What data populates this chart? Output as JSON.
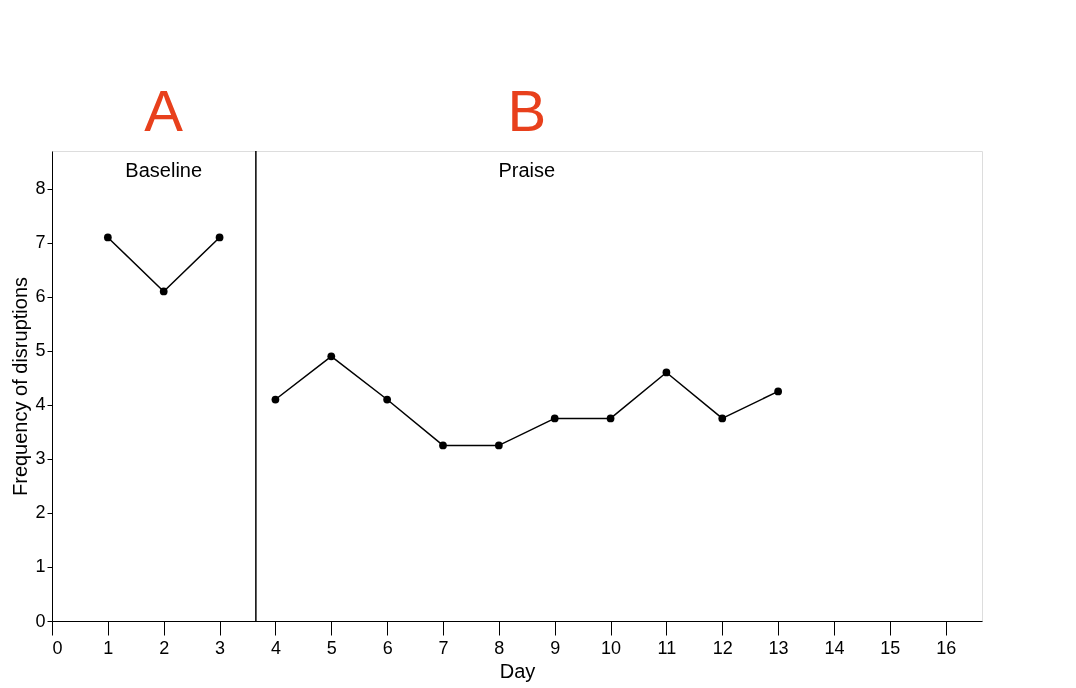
{
  "chart_data": {
    "type": "line",
    "xlabel": "Day",
    "ylabel": "Frequency of disruptions",
    "series": [
      {
        "color": "#000000",
        "x": [
          1,
          2,
          3
        ],
        "values": [
          7.1,
          6.1,
          7.1
        ]
      },
      {
        "color": "#000000",
        "x": [
          4,
          5,
          6,
          7,
          8,
          9,
          10,
          11,
          12,
          13
        ],
        "values": [
          4.1,
          4.9,
          4.1,
          3.25,
          3.25,
          3.75,
          3.75,
          4.6,
          3.75,
          4.25
        ]
      }
    ],
    "xlim": [
      0,
      16.65
    ],
    "xticks": [
      0,
      1,
      2,
      3,
      4,
      5,
      6,
      7,
      8,
      9,
      10,
      11,
      12,
      13,
      14,
      15,
      16
    ],
    "ylim": [
      0,
      8.7
    ],
    "yticks": [
      0,
      1,
      2,
      3,
      4,
      5,
      6,
      7,
      8
    ],
    "ref_lines": [
      {
        "axis": "x",
        "value": 3.65,
        "label": null,
        "color": "#000000"
      }
    ],
    "annotations": [
      "Baseline",
      "Praise",
      "A",
      "B"
    ],
    "marker": "circle",
    "line_style": "solid",
    "grid": false
  }
}
